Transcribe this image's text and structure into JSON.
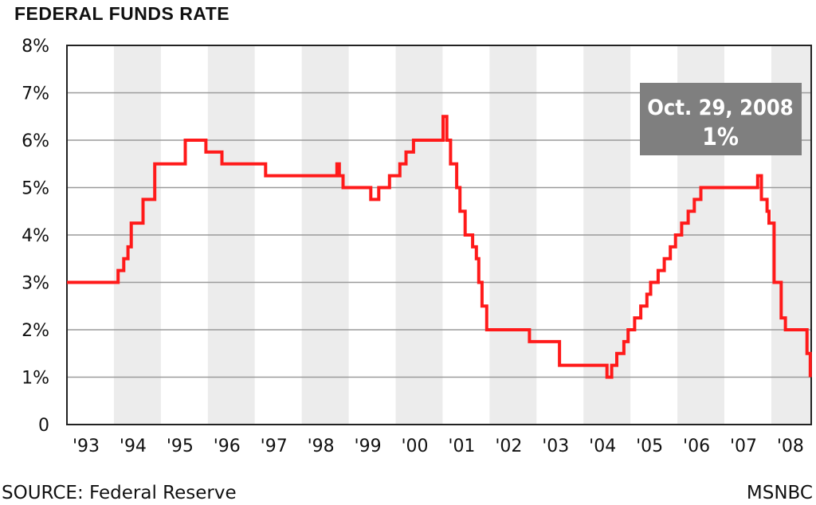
{
  "colors": {
    "line": "#ff1a1a",
    "band": "#ececec",
    "grid": "#9a9a9a",
    "callout_bg": "#7f7f7f",
    "callout_text": "#ffffff"
  },
  "footer": {
    "source": "SOURCE:  Federal Reserve",
    "credit": "MSNBC"
  },
  "chart_data": {
    "type": "line",
    "title": "FEDERAL FUNDS RATE",
    "xlabel": "",
    "ylabel": "",
    "xlim": [
      1993.0,
      2008.85
    ],
    "ylim": [
      0,
      8
    ],
    "grid": true,
    "alternating_year_bands": true,
    "x_tick_labels": [
      "'93",
      "'94",
      "'95",
      "'96",
      "'97",
      "'98",
      "'99",
      "'00",
      "'01",
      "'02",
      "'03",
      "'04",
      "'05",
      "'06",
      "'07",
      "'08"
    ],
    "x_tick_years": [
      1993,
      1994,
      1995,
      1996,
      1997,
      1998,
      1999,
      2000,
      2001,
      2002,
      2003,
      2004,
      2005,
      2006,
      2007,
      2008
    ],
    "y_tick_labels": [
      "0",
      "1%",
      "2%",
      "3%",
      "4%",
      "5%",
      "6%",
      "7%",
      "8%"
    ],
    "y_tick_values": [
      0,
      1,
      2,
      3,
      4,
      5,
      6,
      7,
      8
    ],
    "annotation": {
      "date": "Oct. 29, 2008",
      "value": "1%"
    },
    "series": [
      {
        "step": true,
        "x": [
          1993.0,
          1994.09,
          1994.21,
          1994.3,
          1994.37,
          1994.62,
          1994.87,
          1995.52,
          1995.96,
          1996.3,
          1997.23,
          1998.75,
          1998.8,
          1998.88,
          1999.47,
          1999.64,
          1999.87,
          2000.09,
          2000.22,
          2000.38,
          2001.01,
          2001.09,
          2001.17,
          2001.3,
          2001.37,
          2001.48,
          2001.64,
          2001.72,
          2001.77,
          2001.84,
          2001.94,
          2002.85,
          2003.49,
          2004.5,
          2004.6,
          2004.71,
          2004.86,
          2004.95,
          2005.09,
          2005.22,
          2005.35,
          2005.43,
          2005.59,
          2005.72,
          2005.85,
          2005.96,
          2006.09,
          2006.23,
          2006.36,
          2006.5,
          2007.71,
          2007.79,
          2007.91,
          2007.95,
          2008.06,
          2008.21,
          2008.3,
          2008.76,
          2008.83
        ],
        "values": [
          3.0,
          3.25,
          3.5,
          3.75,
          4.25,
          4.75,
          5.5,
          6.0,
          5.75,
          5.5,
          5.25,
          5.5,
          5.25,
          5.0,
          4.75,
          5.0,
          5.25,
          5.5,
          5.75,
          6.0,
          6.5,
          6.0,
          5.5,
          5.0,
          4.5,
          4.0,
          3.75,
          3.5,
          3.0,
          2.5,
          2.0,
          1.75,
          1.25,
          1.0,
          1.25,
          1.5,
          1.75,
          2.0,
          2.25,
          2.5,
          2.75,
          3.0,
          3.25,
          3.5,
          3.75,
          4.0,
          4.25,
          4.5,
          4.75,
          5.0,
          5.25,
          4.75,
          4.5,
          4.25,
          3.0,
          2.25,
          2.0,
          1.5,
          1.0
        ]
      }
    ]
  }
}
